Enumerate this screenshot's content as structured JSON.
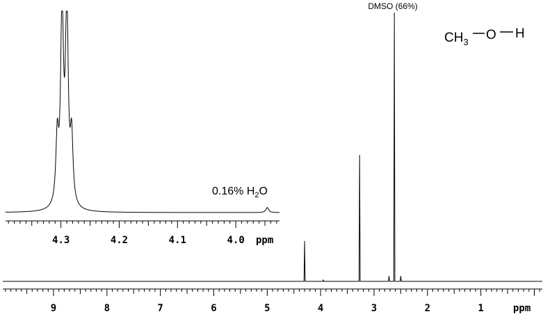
{
  "chart_data": [
    {
      "type": "line",
      "name": "",
      "xlabel": "ppm",
      "x_reversed": true,
      "xlim": [
        9.95,
        -0.15
      ],
      "tick_labels": [
        "9",
        "8",
        "7",
        "6",
        "5",
        "4",
        "3",
        "2",
        "1"
      ],
      "peaks": [
        {
          "x": 4.3,
          "height": 0.15,
          "multiplicity": "quartet"
        },
        {
          "x": 3.95,
          "height": 0.005
        },
        {
          "x": 3.27,
          "height": 0.47,
          "multiplicity": "doublet"
        },
        {
          "x": 2.72,
          "height": 0.02
        },
        {
          "x": 2.62,
          "height": 1.0,
          "label": "DMSO (66%)"
        },
        {
          "x": 2.5,
          "height": 0.02
        }
      ],
      "molecule": {
        "ch3": "CH",
        "sub": "3",
        "o": "O",
        "h": "H"
      },
      "peak_label": "DMSO (66%)"
    },
    {
      "type": "line",
      "name": "inset",
      "xlabel": "ppm",
      "x_reversed": true,
      "xlim": [
        4.395,
        3.925
      ],
      "tick_labels": [
        "4.3",
        "4.2",
        "4.1",
        "4.0"
      ],
      "tick_values": [
        4.3,
        4.2,
        4.1,
        4.0
      ],
      "peaks": [
        {
          "x": 4.3063,
          "height": 0.33
        },
        {
          "x": 4.2981,
          "height": 1.0
        },
        {
          "x": 4.2899,
          "height": 1.0
        },
        {
          "x": 4.2817,
          "height": 0.33
        },
        {
          "x": 3.946,
          "height": 0.025
        }
      ],
      "annotation": {
        "pre": "0.16% H",
        "sub": "2",
        "post": "O"
      }
    }
  ]
}
